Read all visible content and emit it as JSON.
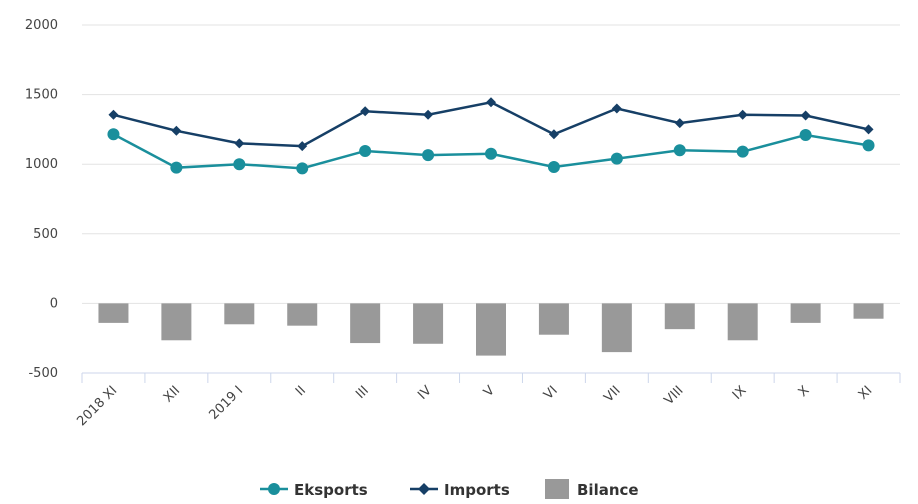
{
  "chart_data": {
    "type": "bar+line",
    "categories": [
      "2018 XI",
      "XII",
      "2019 I",
      "II",
      "III",
      "IV",
      "V",
      "VI",
      "VII",
      "VIII",
      "IX",
      "X",
      "XI"
    ],
    "ylim": [
      -500,
      2000
    ],
    "yticks": [
      -500,
      0,
      500,
      1000,
      1500,
      2000
    ],
    "grid": true,
    "legend_position": "bottom-center",
    "series": [
      {
        "name": "Eksports",
        "kind": "line",
        "marker": "circle",
        "color": "#1a8f9c",
        "values": [
          1215,
          975,
          1000,
          970,
          1095,
          1065,
          1075,
          980,
          1040,
          1100,
          1090,
          1210,
          1135
        ]
      },
      {
        "name": "Imports",
        "kind": "line",
        "marker": "diamond",
        "color": "#163f66",
        "values": [
          1355,
          1240,
          1150,
          1130,
          1380,
          1355,
          1445,
          1215,
          1400,
          1295,
          1355,
          1350,
          1250
        ]
      },
      {
        "name": "Bilance",
        "kind": "bar",
        "color": "#999999",
        "values": [
          -140,
          -265,
          -150,
          -160,
          -285,
          -290,
          -375,
          -225,
          -350,
          -185,
          -265,
          -140,
          -110
        ]
      }
    ]
  }
}
